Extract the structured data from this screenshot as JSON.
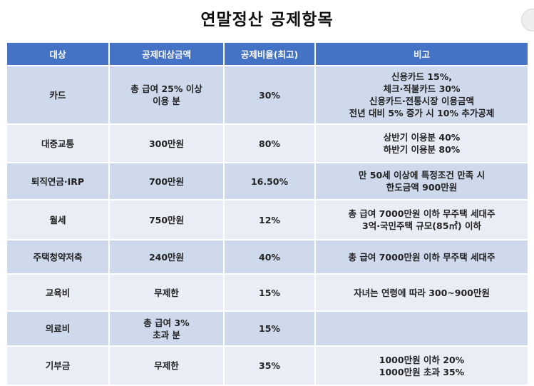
{
  "title": "연말정산 공제항목",
  "headers": [
    "대상",
    "공제대상금액",
    "공제비율(최고)",
    "비고"
  ],
  "rows": [
    {
      "target": "카드",
      "amount": "총 급여 25% 이상\n이용 분",
      "rate": "30%",
      "note": "신용카드 15%,\n체크·직불카드 30%\n신용카드·전통시장 이용금액\n전년 대비 5% 증가 시 10% 추가공제"
    },
    {
      "target": "대중교통",
      "amount": "300만원",
      "rate": "80%",
      "note": "상반기 이용분 40%\n하반기 이용분 80%"
    },
    {
      "target": "퇴직연금·IRP",
      "amount": "700만원",
      "rate": "16.50%",
      "note": "만 50세 이상에 특정조건 만족 시\n한도금액 900만원"
    },
    {
      "target": "월세",
      "amount": "750만원",
      "rate": "12%",
      "note": "총 급여 7000만원 이하 무주택 세대주\n3억·국민주택 규모(85㎡) 이하"
    },
    {
      "target": "주택청약저축",
      "amount": "240만원",
      "rate": "40%",
      "note": "총 급여 7000만원 이하 무주택 세대주"
    },
    {
      "target": "교육비",
      "amount": "무제한",
      "rate": "15%",
      "note": "자녀는 연령에 따라 300~900만원"
    },
    {
      "target": "의료비",
      "amount": "총 급여 3%\n초과 분",
      "rate": "15%",
      "note": ""
    },
    {
      "target": "기부금",
      "amount": "무제한",
      "rate": "35%",
      "note": "1000만원 이하 20%\n1000만원 초과 35%"
    }
  ]
}
